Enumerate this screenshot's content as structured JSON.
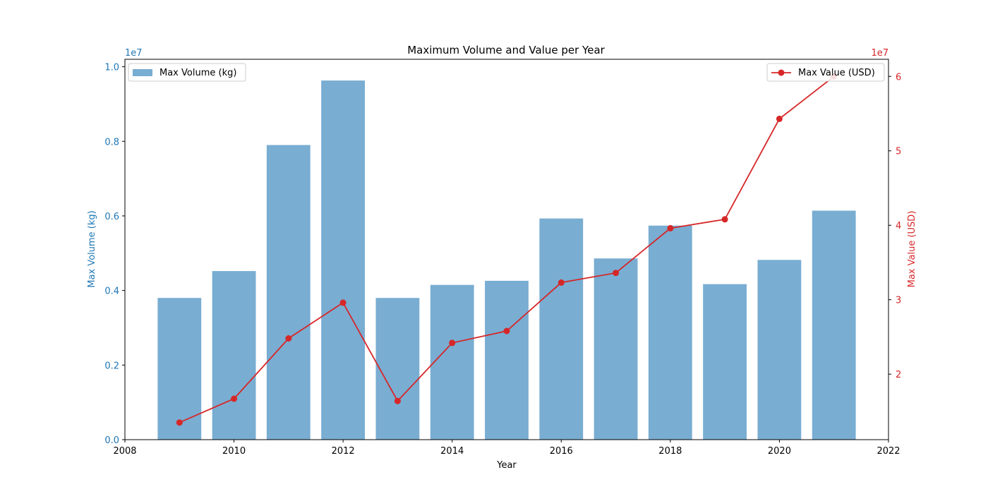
{
  "chart_data": {
    "type": "bar",
    "title": "Maximum Volume and Value per Year",
    "xlabel": "Year",
    "x": [
      2009,
      2010,
      2011,
      2012,
      2013,
      2014,
      2015,
      2016,
      2017,
      2018,
      2019,
      2020,
      2021
    ],
    "xlim": [
      2008,
      2022
    ],
    "xticks": [
      2008,
      2010,
      2012,
      2014,
      2016,
      2018,
      2020,
      2022
    ],
    "grid": false,
    "series": [
      {
        "name": "Max Volume (kg)",
        "type": "bar",
        "axis": "left",
        "color": "#1f77b4",
        "opacity": 0.6,
        "values": [
          3800000,
          4520000,
          7900000,
          9630000,
          3800000,
          4150000,
          4260000,
          5930000,
          4860000,
          5740000,
          4170000,
          4820000,
          6140000
        ]
      },
      {
        "name": "Max Value (USD)",
        "type": "line",
        "axis": "right",
        "color": "#d62728",
        "marker": "circle",
        "values": [
          13500000,
          16700000,
          24800000,
          29600000,
          16400000,
          24200000,
          25800000,
          32300000,
          33600000,
          39600000,
          40800000,
          54300000,
          60000000
        ]
      }
    ],
    "y_left": {
      "label": "Max Volume (kg)",
      "multiplier": "1e7",
      "lim": [
        0,
        10200000
      ],
      "ticks": [
        0,
        2000000,
        4000000,
        6000000,
        8000000,
        10000000
      ],
      "tick_labels": [
        "0.0",
        "0.2",
        "0.4",
        "0.6",
        "0.8",
        "1.0"
      ],
      "color": "#1f77b4"
    },
    "y_right": {
      "label": "Max Value (USD)",
      "multiplier": "1e7",
      "lim": [
        11200000,
        62300000
      ],
      "ticks": [
        20000000,
        30000000,
        40000000,
        50000000,
        60000000
      ],
      "tick_labels": [
        "2",
        "3",
        "4",
        "5",
        "6"
      ],
      "color": "#d62728"
    },
    "legends": [
      {
        "series": 0,
        "placement": "upper-left"
      },
      {
        "series": 1,
        "placement": "upper-right"
      }
    ]
  }
}
